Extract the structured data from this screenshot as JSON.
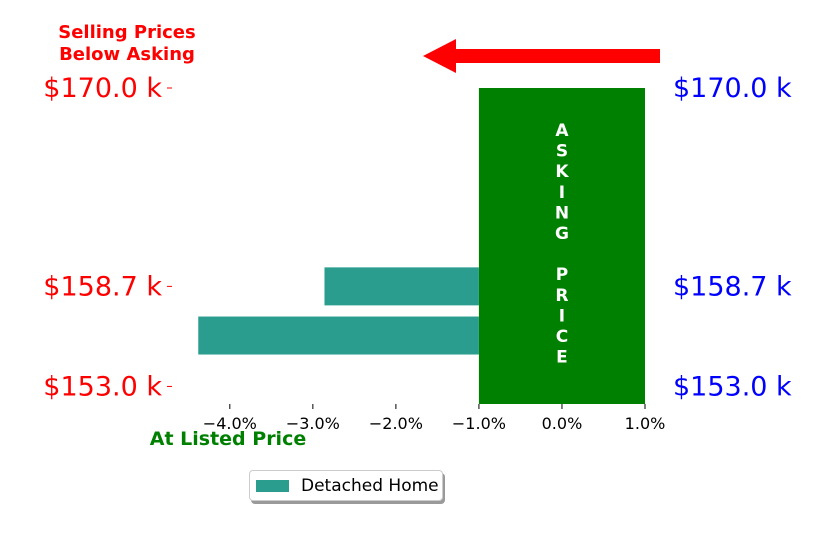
{
  "chart_data": {
    "type": "bar",
    "orientation": "horizontal",
    "annotation_top": [
      "Selling Prices",
      "Below Asking"
    ],
    "annotation_bottom": "At Listed Price",
    "asking_price_band": {
      "text": "ASKING PRICE",
      "x_range": [
        -1.0,
        1.0
      ]
    },
    "left_tick_labels": [
      "$170.0 k",
      "$158.7 k",
      "$153.0 k"
    ],
    "right_tick_labels": [
      "$170.0 k",
      "$158.7 k",
      "$153.0 k"
    ],
    "x_ticks": [
      -4.0,
      -3.0,
      -2.0,
      -1.0,
      0.0,
      1.0
    ],
    "x_tick_labels": [
      "−4.0%",
      "−3.0%",
      "−2.0%",
      "−1.0%",
      "0.0%",
      "1.0%"
    ],
    "xlim": [
      -4.6,
      1.0
    ],
    "series": [
      {
        "name": "Detached Home",
        "bars": [
          {
            "y": 158.7,
            "value": -2.86
          },
          {
            "y": 155.9,
            "value": -4.38
          }
        ]
      }
    ],
    "ylim": [
      152.0,
      170.0
    ],
    "legend_position": "bottom-center",
    "grid": false
  },
  "colors": {
    "bar": "#2a9d8f",
    "band": "#008000",
    "left_labels": "#ff0000",
    "right_labels": "#0000ff",
    "arrow": "#ff0000",
    "top_annotation": "#ff0000",
    "bottom_annotation": "#008000"
  },
  "legend": {
    "label": "Detached Home"
  }
}
